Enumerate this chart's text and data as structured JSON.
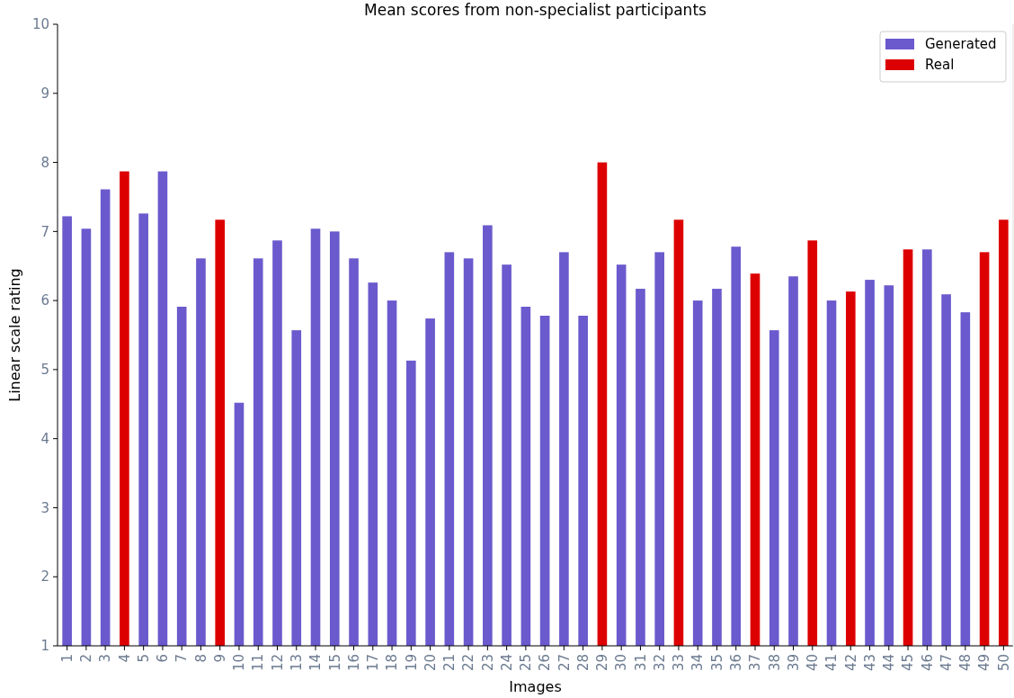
{
  "chart_data": {
    "type": "bar",
    "title": "Mean scores from non-specialist participants",
    "xlabel": "Images",
    "ylabel": "Linear scale rating",
    "categories": [
      "1",
      "2",
      "3",
      "4",
      "5",
      "6",
      "7",
      "8",
      "9",
      "10",
      "11",
      "12",
      "13",
      "14",
      "15",
      "16",
      "17",
      "18",
      "19",
      "20",
      "21",
      "22",
      "23",
      "24",
      "25",
      "26",
      "27",
      "28",
      "29",
      "30",
      "31",
      "32",
      "33",
      "34",
      "35",
      "36",
      "37",
      "38",
      "39",
      "40",
      "41",
      "42",
      "43",
      "44",
      "45",
      "46",
      "47",
      "48",
      "49",
      "50"
    ],
    "series": [
      {
        "name": "Generated",
        "color": "#6a5acd",
        "values": [
          7.22,
          7.04,
          7.61,
          null,
          7.26,
          7.87,
          5.91,
          6.61,
          null,
          4.52,
          6.61,
          6.87,
          5.57,
          7.04,
          7.0,
          6.61,
          6.26,
          6.0,
          5.13,
          5.74,
          6.7,
          6.61,
          7.09,
          6.52,
          5.91,
          5.78,
          6.7,
          5.78,
          null,
          6.52,
          6.17,
          6.7,
          null,
          6.0,
          6.17,
          6.78,
          null,
          5.57,
          6.35,
          null,
          6.0,
          null,
          6.3,
          6.22,
          null,
          6.74,
          6.09,
          5.83,
          null,
          null
        ]
      },
      {
        "name": "Real",
        "color": "#dd0000",
        "values": [
          null,
          null,
          null,
          7.87,
          null,
          null,
          null,
          null,
          7.17,
          null,
          null,
          null,
          null,
          null,
          null,
          null,
          null,
          null,
          null,
          null,
          null,
          null,
          null,
          null,
          null,
          null,
          null,
          null,
          8.0,
          null,
          null,
          null,
          7.17,
          null,
          null,
          null,
          6.39,
          null,
          null,
          6.87,
          null,
          6.13,
          null,
          null,
          6.74,
          null,
          null,
          null,
          6.7,
          7.17
        ]
      }
    ],
    "ylim": [
      1,
      10
    ],
    "yticks": [
      1,
      2,
      3,
      4,
      5,
      6,
      7,
      8,
      9,
      10
    ],
    "legend": "top right"
  }
}
